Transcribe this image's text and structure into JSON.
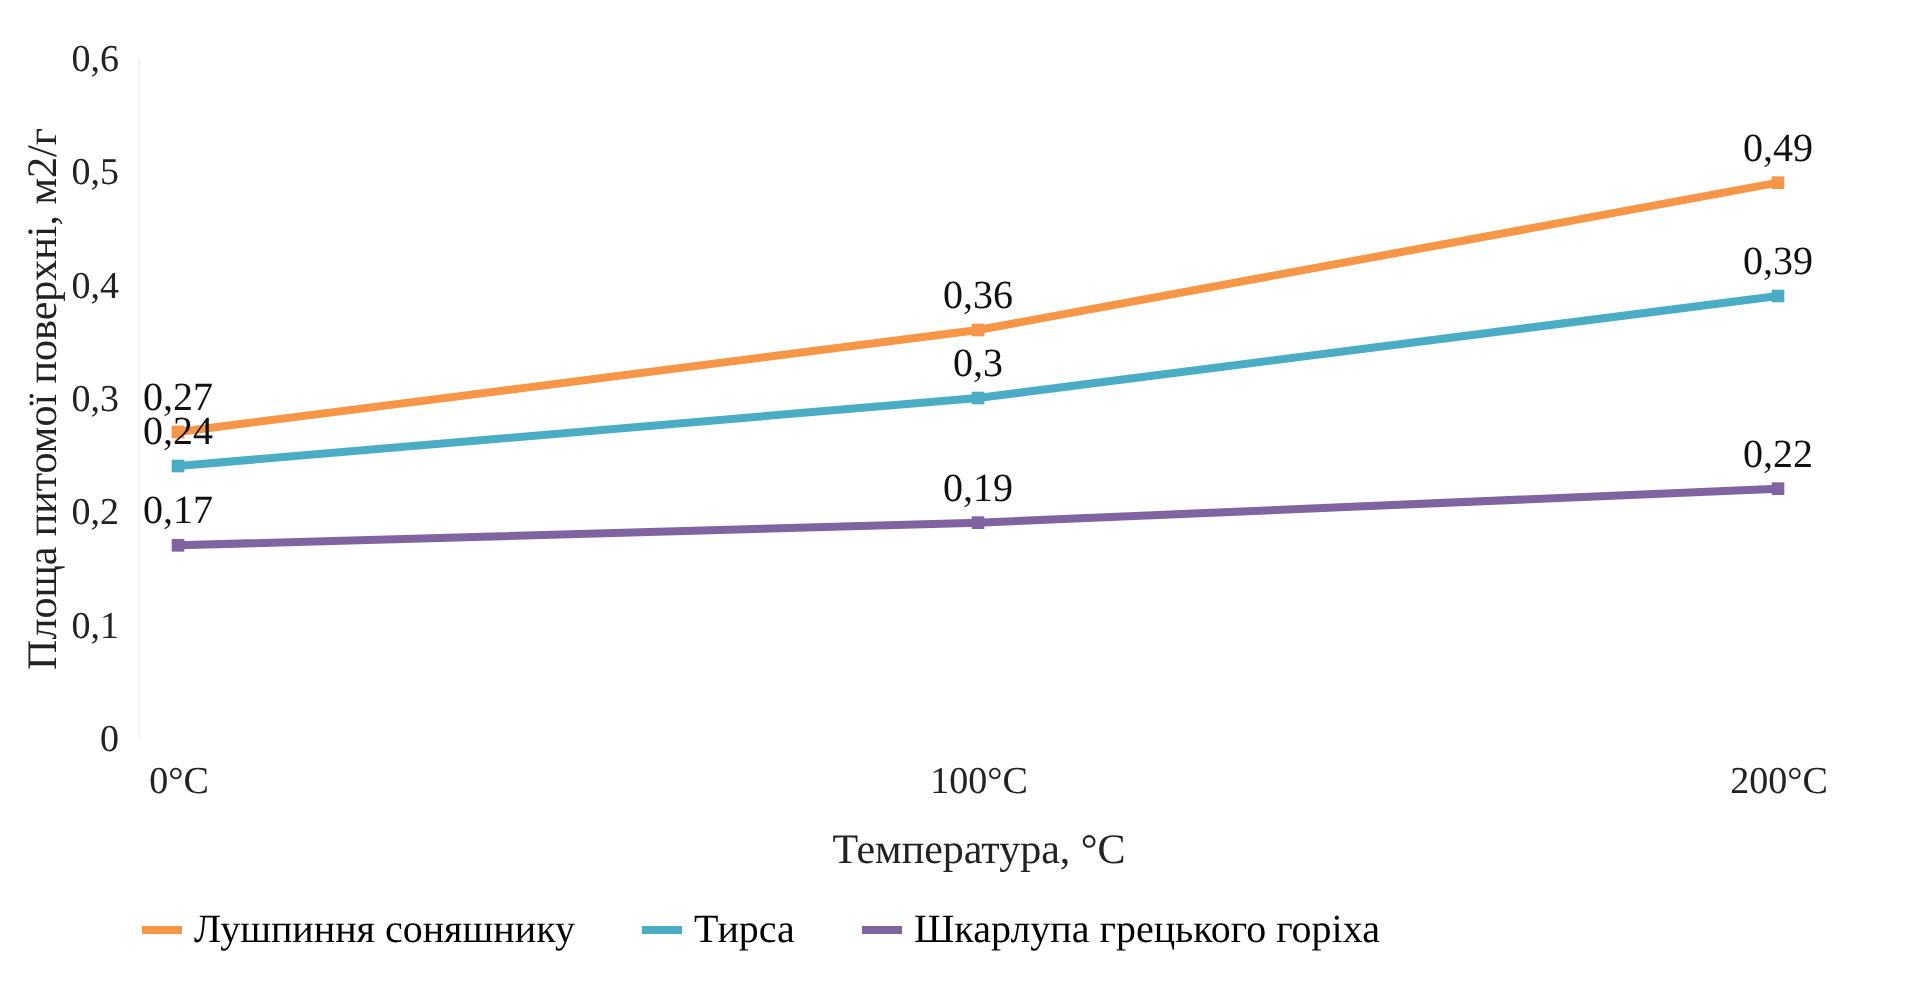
{
  "chart_data": {
    "type": "line",
    "xlabel": "Температура, °C",
    "ylabel": "Площа питомої поверхні, м2/г",
    "categories": [
      "0°C",
      "100°C",
      "200°C"
    ],
    "series": [
      {
        "name": "Лушпиння соняшнику",
        "color": "#f79646",
        "values": [
          0.27,
          0.36,
          0.49
        ],
        "value_labels": [
          "0,27",
          "0,36",
          "0,49"
        ]
      },
      {
        "name": "Тирса",
        "color": "#4bacc6",
        "values": [
          0.24,
          0.3,
          0.39
        ],
        "value_labels": [
          "0,24",
          "0,3",
          "0,39"
        ]
      },
      {
        "name": "Шкарлупа грецького горіха",
        "color": "#8064a2",
        "values": [
          0.17,
          0.19,
          0.22
        ],
        "value_labels": [
          "0,17",
          "0,19",
          "0,22"
        ]
      }
    ],
    "ylim": [
      0,
      0.6
    ],
    "yticks": [
      0,
      {
        "value": 0.1,
        "label": "0,1"
      },
      {
        "value": 0.2,
        "label": "0,2"
      },
      {
        "value": 0.3,
        "label": "0,3"
      },
      {
        "value": 0.4,
        "label": "0,4"
      },
      {
        "value": 0.5,
        "label": "0,5"
      },
      {
        "value": 0.6,
        "label": "0,6"
      }
    ],
    "grid": false,
    "legend": "bottom",
    "marker": "square",
    "line_style": "solid"
  }
}
